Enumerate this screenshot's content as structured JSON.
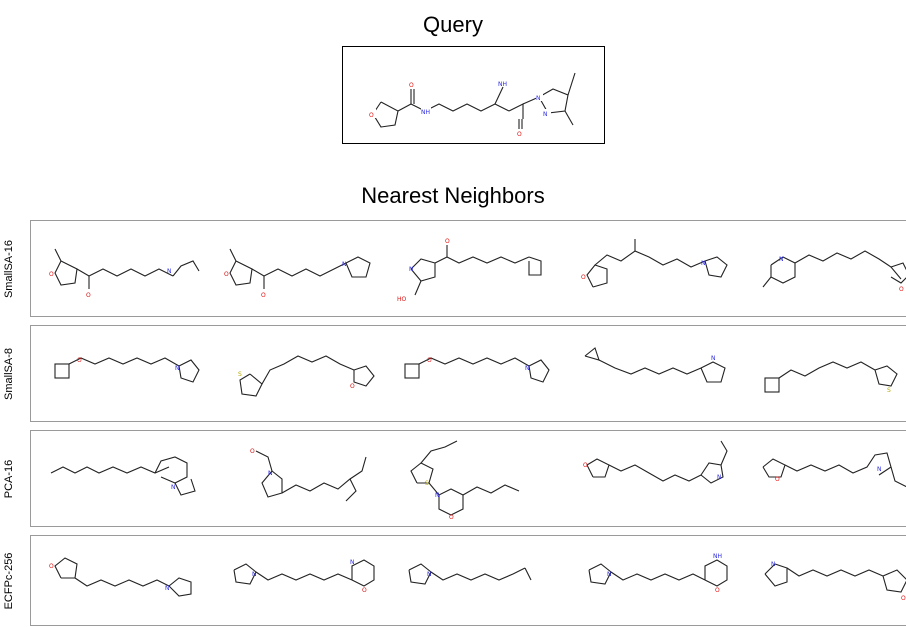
{
  "header": {
    "query_title": "Query",
    "neighbors_title": "Nearest Neighbors"
  },
  "rows": [
    {
      "label": "SmallSA-16"
    },
    {
      "label": "SmallSA-8"
    },
    {
      "label": "PCA-16"
    },
    {
      "label": "ECFPc-256"
    }
  ],
  "atom_colors": {
    "nitrogen": "#2a2adf",
    "oxygen": "#e01010",
    "sulfur": "#b5a800",
    "bond": "#222222"
  }
}
